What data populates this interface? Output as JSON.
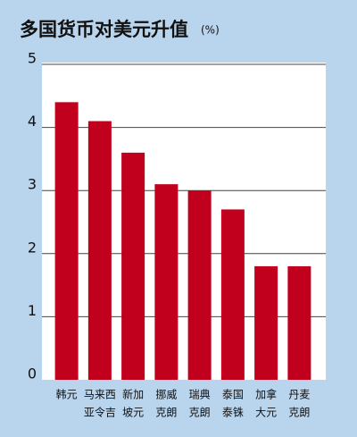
{
  "chart_data": {
    "type": "bar",
    "title": "多国货币对美元升值",
    "unit": "(%)",
    "categories": [
      [
        "韩元"
      ],
      [
        "马来西",
        "亚令吉"
      ],
      [
        "新加",
        "坡元"
      ],
      [
        "挪威",
        "克朗"
      ],
      [
        "瑞典",
        "克朗"
      ],
      [
        "泰国",
        "泰铢"
      ],
      [
        "加拿",
        "大元"
      ],
      [
        "丹麦",
        "克朗"
      ]
    ],
    "values": [
      4.4,
      4.1,
      3.6,
      3.1,
      3.0,
      2.7,
      1.8,
      1.8
    ],
    "color": "#c0001c",
    "ylim": [
      0,
      5
    ],
    "yticks": [
      0,
      1,
      2,
      3,
      4,
      5
    ],
    "grid": true
  }
}
